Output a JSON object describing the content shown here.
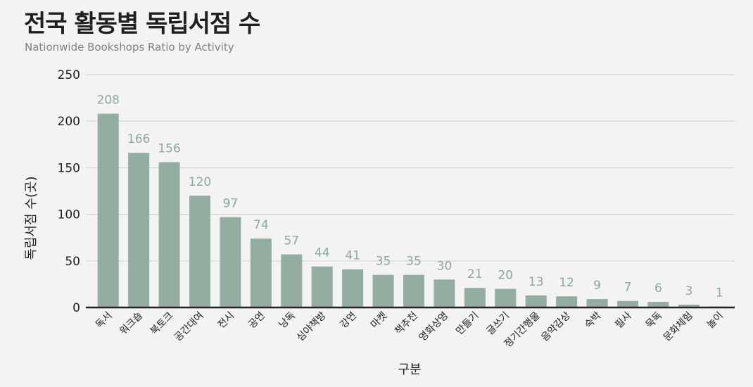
{
  "title": "전국 활동별 독립서점 수",
  "subtitle": "Nationwide Bookshops Ratio by Activity",
  "colors": {
    "bar": "#94ada1",
    "label": "#8aa99b",
    "grid": "#d6d6d8",
    "axis": "#222222"
  },
  "chart_data": {
    "type": "bar",
    "categories": [
      "독서",
      "워크숍",
      "북토크",
      "공간대여",
      "전시",
      "공연",
      "낭독",
      "심야책방",
      "강연",
      "마켓",
      "책추천",
      "영화상영",
      "만들기",
      "글쓰기",
      "정기간행물",
      "음악감상",
      "숙박",
      "필사",
      "묵독",
      "문화체험",
      "놀이"
    ],
    "values": [
      208,
      166,
      156,
      120,
      97,
      74,
      57,
      44,
      41,
      35,
      35,
      30,
      21,
      20,
      13,
      12,
      9,
      7,
      6,
      3,
      1
    ],
    "xlabel": "구분",
    "ylabel": "독립서점 수(곳)",
    "ylim": [
      0,
      250
    ],
    "yticks": [
      0,
      50,
      100,
      150,
      200,
      250
    ],
    "grid": true,
    "data_labels": true
  }
}
